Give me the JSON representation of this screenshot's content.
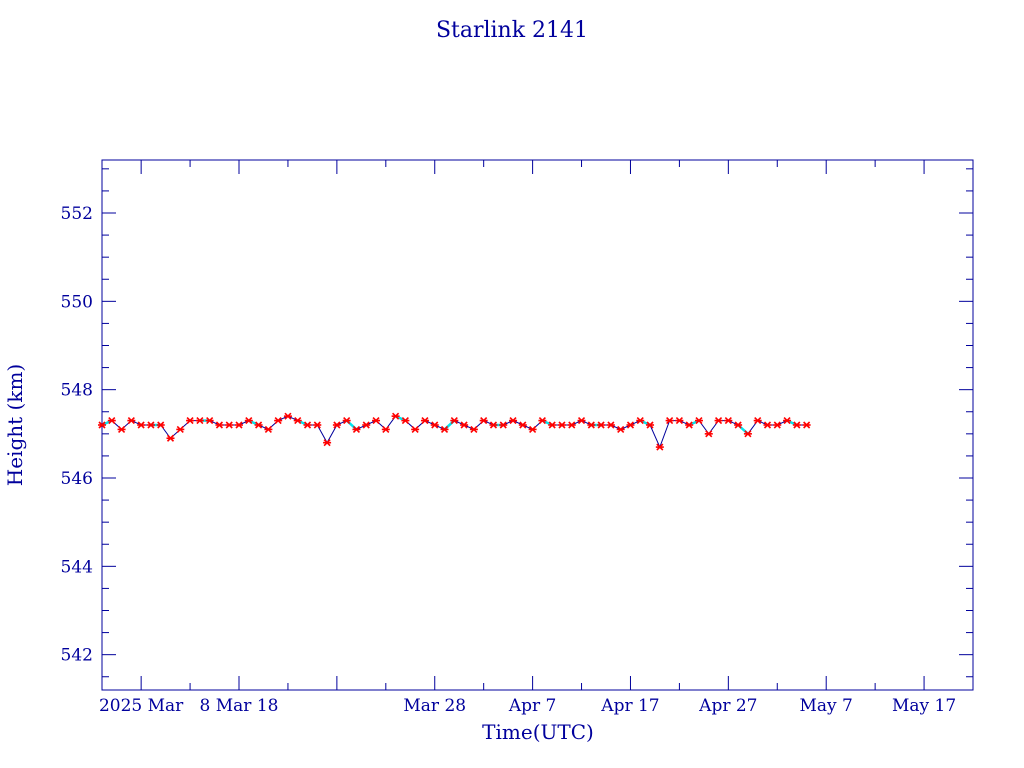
{
  "chart_data": {
    "type": "line",
    "title": "Starlink 2141",
    "xlabel": "Time(UTC)",
    "ylabel": "Height (km)",
    "xlim": [
      "2025-02-22",
      "2025-05-22"
    ],
    "ylim": [
      541.2,
      553.2
    ],
    "x_ticks": [
      {
        "date": "2025-02-26",
        "label": "2025 Mar"
      },
      {
        "date": "2025-03-08",
        "label": "8 Mar 18"
      },
      {
        "date": "2025-03-18",
        "label": ""
      },
      {
        "date": "2025-03-28",
        "label": "Mar 28"
      },
      {
        "date": "2025-04-07",
        "label": "Apr  7"
      },
      {
        "date": "2025-04-17",
        "label": "Apr 17"
      },
      {
        "date": "2025-04-27",
        "label": "Apr 27"
      },
      {
        "date": "2025-05-07",
        "label": "May  7"
      },
      {
        "date": "2025-05-17",
        "label": "May 17"
      }
    ],
    "y_ticks": [
      542,
      544,
      546,
      548,
      550,
      552
    ],
    "colors": {
      "axis": "#00009c",
      "line": "#00009c",
      "point": "#ff0000",
      "dash": "#00e5ee"
    },
    "series": [
      {
        "x": [
          "2025-02-22",
          "2025-02-23",
          "2025-02-24",
          "2025-02-25",
          "2025-02-26",
          "2025-02-27",
          "2025-02-28",
          "2025-03-01",
          "2025-03-02",
          "2025-03-03",
          "2025-03-04",
          "2025-03-05",
          "2025-03-06",
          "2025-03-07",
          "2025-03-08",
          "2025-03-09",
          "2025-03-10",
          "2025-03-11",
          "2025-03-12",
          "2025-03-13",
          "2025-03-14",
          "2025-03-15",
          "2025-03-16",
          "2025-03-17",
          "2025-03-18",
          "2025-03-19",
          "2025-03-20",
          "2025-03-21",
          "2025-03-22",
          "2025-03-23",
          "2025-03-24",
          "2025-03-25",
          "2025-03-26",
          "2025-03-27",
          "2025-03-28",
          "2025-03-29",
          "2025-03-30",
          "2025-03-31",
          "2025-04-01",
          "2025-04-02",
          "2025-04-03",
          "2025-04-04",
          "2025-04-05",
          "2025-04-06",
          "2025-04-07",
          "2025-04-08",
          "2025-04-09",
          "2025-04-10",
          "2025-04-11",
          "2025-04-12",
          "2025-04-13",
          "2025-04-14",
          "2025-04-15",
          "2025-04-16",
          "2025-04-17",
          "2025-04-18",
          "2025-04-19",
          "2025-04-20",
          "2025-04-21",
          "2025-04-22",
          "2025-04-23",
          "2025-04-24",
          "2025-04-25",
          "2025-04-26",
          "2025-04-27",
          "2025-04-28",
          "2025-04-29",
          "2025-04-30",
          "2025-05-01",
          "2025-05-02",
          "2025-05-03",
          "2025-05-04",
          "2025-05-05"
        ],
        "y": [
          547.2,
          547.3,
          547.1,
          547.3,
          547.2,
          547.2,
          547.2,
          546.9,
          547.1,
          547.3,
          547.3,
          547.3,
          547.2,
          547.2,
          547.2,
          547.3,
          547.2,
          547.1,
          547.3,
          547.4,
          547.3,
          547.2,
          547.2,
          546.8,
          547.2,
          547.3,
          547.1,
          547.2,
          547.3,
          547.1,
          547.4,
          547.3,
          547.1,
          547.3,
          547.2,
          547.1,
          547.3,
          547.2,
          547.1,
          547.3,
          547.2,
          547.2,
          547.3,
          547.2,
          547.1,
          547.3,
          547.2,
          547.2,
          547.2,
          547.3,
          547.2,
          547.2,
          547.2,
          547.1,
          547.2,
          547.3,
          547.2,
          546.7,
          547.3,
          547.3,
          547.2,
          547.3,
          547.0,
          547.3,
          547.3,
          547.2,
          547.0,
          547.3,
          547.2,
          547.2,
          547.3,
          547.2,
          547.2
        ]
      }
    ]
  }
}
